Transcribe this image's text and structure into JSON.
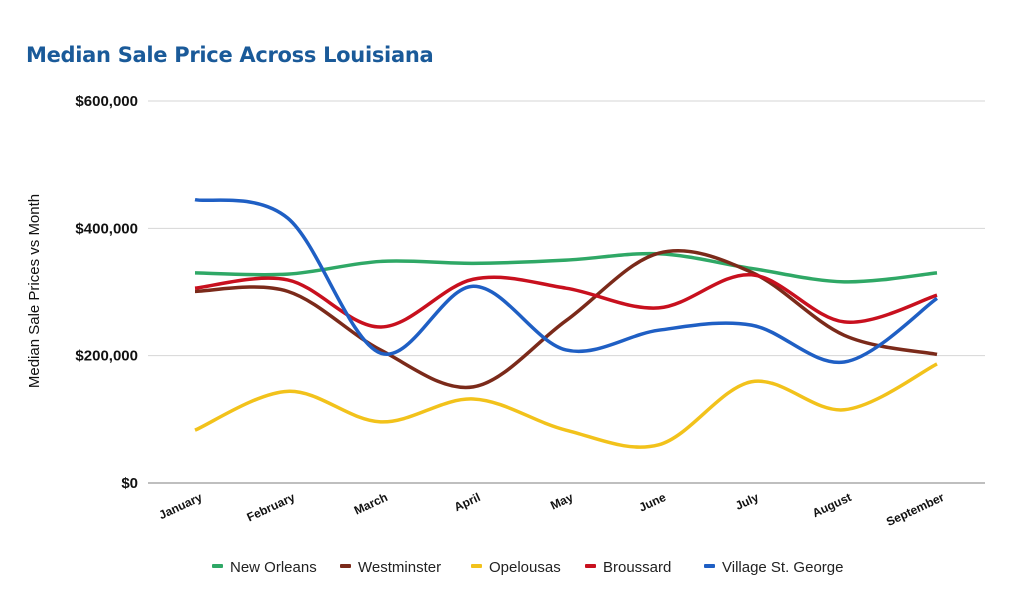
{
  "chart_data": {
    "type": "line",
    "title": "Median Sale Price Across Louisiana",
    "xlabel": "",
    "ylabel": "Median Sale Prices vs Month",
    "categories": [
      "January",
      "February",
      "March",
      "April",
      "May",
      "June",
      "July",
      "August",
      "September"
    ],
    "ylim": [
      0,
      600000
    ],
    "yticks": [
      0,
      200000,
      400000,
      600000
    ],
    "ytick_labels": [
      "$0",
      "$200,000",
      "$400,000",
      "$600,000"
    ],
    "grid": true,
    "legend_position": "bottom",
    "smooth": true,
    "series": [
      {
        "name": "New Orleans",
        "color": "#2fa866",
        "values": [
          330000,
          328000,
          348000,
          345000,
          350000,
          360000,
          337000,
          316000,
          330000
        ]
      },
      {
        "name": "Westminster",
        "color": "#7b2a1a",
        "values": [
          301000,
          301000,
          209000,
          151000,
          255000,
          361000,
          331000,
          232000,
          202000
        ]
      },
      {
        "name": "Opelousas",
        "color": "#f2c21b",
        "values": [
          83000,
          144000,
          96000,
          132000,
          83000,
          60000,
          159000,
          115000,
          187000
        ]
      },
      {
        "name": "Broussard",
        "color": "#c8101e",
        "values": [
          306000,
          319000,
          245000,
          320000,
          306000,
          275000,
          327000,
          253000,
          295000
        ]
      },
      {
        "name": "Village St. George",
        "color": "#1f5fc4",
        "values": [
          445000,
          416000,
          204000,
          309000,
          209000,
          240000,
          248000,
          190000,
          290000
        ]
      }
    ]
  }
}
